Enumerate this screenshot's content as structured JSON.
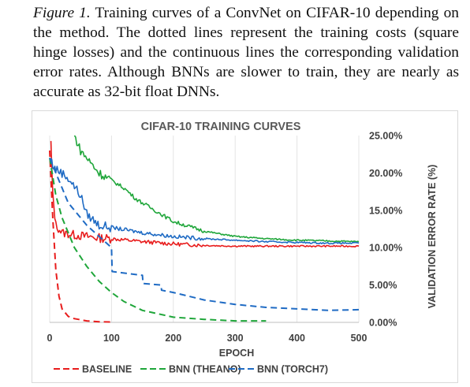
{
  "caption": {
    "lead": "Figure 1.",
    "text": " Training curves of a ConvNet on CIFAR-10 depending on the method. The dotted lines represent the training costs (square hinge losses) and the continuous lines the corresponding validation error rates. Although BNNs are slower to train, they are nearly as accurate as 32-bit float DNNs."
  },
  "chart_data": {
    "type": "line",
    "title": "CIFAR-10 TRAINING CURVES",
    "xlabel": "EPOCH",
    "ylabel": "VALIDATION ERROR RATE (%)",
    "xlim": [
      0,
      500
    ],
    "ylim": [
      0,
      0.25
    ],
    "x_ticks": [
      "0",
      "100",
      "200",
      "300",
      "400",
      "500"
    ],
    "y_ticks": [
      "0.00%",
      "5.00%",
      "10.00%",
      "15.00%",
      "20.00%",
      "25.00%"
    ],
    "grid": "vertical",
    "legend_position": "bottom",
    "legend": [
      "BASELINE",
      "BNN (THEANO)",
      "BNN (TORCH7)"
    ],
    "colors": {
      "baseline": "#e81c1c",
      "theano": "#1fa63a",
      "torch7": "#1f6bc4"
    },
    "series": [
      {
        "name": "BASELINE",
        "style": "solid",
        "color": "#e81c1c",
        "x": [
          2,
          5,
          10,
          20,
          40,
          60,
          80,
          100,
          150,
          200,
          250,
          300,
          350,
          400,
          450,
          500
        ],
        "y": [
          0.24,
          0.17,
          0.13,
          0.12,
          0.117,
          0.115,
          0.113,
          0.112,
          0.108,
          0.105,
          0.103,
          0.102,
          0.102,
          0.102,
          0.102,
          0.102
        ]
      },
      {
        "name": "BNN (THEANO)",
        "style": "solid",
        "color": "#1fa63a",
        "x": [
          40,
          50,
          60,
          70,
          80,
          100,
          120,
          140,
          160,
          180,
          200,
          250,
          300,
          350,
          400,
          450,
          500
        ],
        "y": [
          0.25,
          0.23,
          0.22,
          0.21,
          0.2,
          0.19,
          0.18,
          0.165,
          0.155,
          0.145,
          0.135,
          0.122,
          0.115,
          0.112,
          0.11,
          0.109,
          0.108
        ]
      },
      {
        "name": "BNN (TORCH7)",
        "style": "solid",
        "color": "#1f6bc4",
        "x": [
          2,
          5,
          10,
          20,
          30,
          40,
          50,
          60,
          80,
          100,
          150,
          200,
          250,
          300,
          350,
          400,
          450,
          500
        ],
        "y": [
          0.22,
          0.21,
          0.205,
          0.2,
          0.193,
          0.182,
          0.17,
          0.145,
          0.13,
          0.127,
          0.12,
          0.115,
          0.112,
          0.11,
          0.108,
          0.107,
          0.106,
          0.106
        ]
      },
      {
        "name": "BASELINE",
        "style": "dashed",
        "color": "#e81c1c",
        "x": [
          0,
          5,
          10,
          15,
          20,
          30,
          40,
          60,
          80,
          100
        ],
        "y": [
          0.23,
          0.14,
          0.07,
          0.035,
          0.018,
          0.008,
          0.005,
          0.002,
          0.0008,
          0.0005
        ]
      },
      {
        "name": "BNN (THEANO)",
        "style": "dashed",
        "color": "#1fa63a",
        "x": [
          0,
          10,
          20,
          40,
          60,
          80,
          100,
          120,
          150,
          200,
          250,
          300,
          350
        ],
        "y": [
          0.22,
          0.17,
          0.14,
          0.1,
          0.075,
          0.055,
          0.04,
          0.028,
          0.016,
          0.007,
          0.004,
          0.002,
          0.002
        ]
      },
      {
        "name": "BNN (TORCH7)",
        "style": "dashed",
        "color": "#1f6bc4",
        "x": [
          0,
          10,
          20,
          30,
          40,
          50,
          60,
          80,
          100,
          101,
          150,
          151,
          180,
          181,
          200,
          250,
          300,
          350,
          400,
          450,
          500
        ],
        "y": [
          0.22,
          0.2,
          0.18,
          0.16,
          0.15,
          0.14,
          0.13,
          0.115,
          0.1,
          0.068,
          0.063,
          0.052,
          0.05,
          0.043,
          0.04,
          0.03,
          0.024,
          0.02,
          0.018,
          0.016,
          0.017
        ]
      }
    ]
  }
}
